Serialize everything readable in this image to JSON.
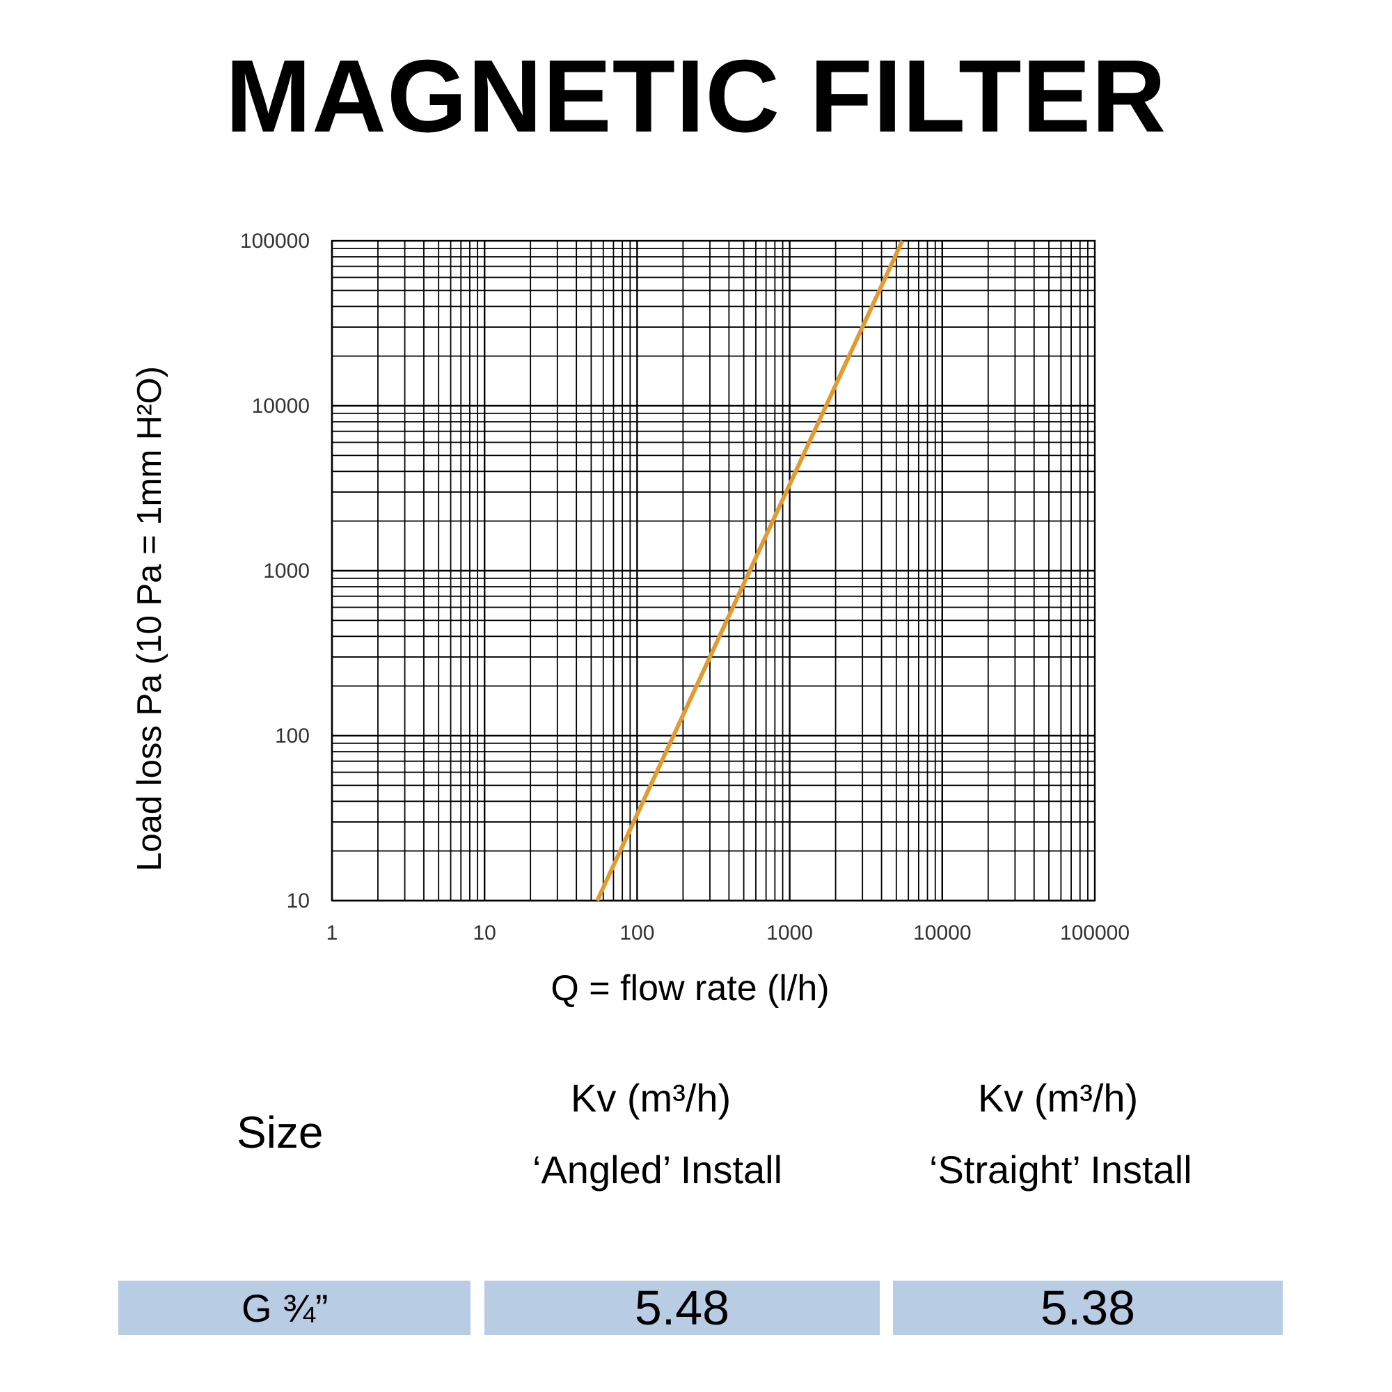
{
  "title": "MAGNETIC FILTER",
  "chart_data": {
    "type": "line",
    "xlabel": "Q = flow rate (l/h)",
    "ylabel": "Load loss Pa (10 Pa = 1mm H²O)",
    "x_scale": "log",
    "y_scale": "log",
    "xlim": [
      1,
      100000
    ],
    "ylim": [
      10,
      100000
    ],
    "x_ticks": [
      "1",
      "10",
      "100",
      "1000",
      "10000",
      "100000"
    ],
    "y_ticks": [
      "10",
      "100",
      "1000",
      "10000",
      "100000"
    ],
    "grid": true,
    "series": [
      {
        "color": "#e39a2e",
        "x": [
          54.8,
          5480
        ],
        "y": [
          10,
          100000
        ]
      }
    ]
  },
  "table": {
    "size_header": "Size",
    "angled_header_line1": "Kv (m³/h)",
    "angled_header_line2": "‘Angled’ Install",
    "straight_header_line1": "Kv (m³/h)",
    "straight_header_line2": "‘Straight’ Install",
    "row": {
      "size": "G ¾”",
      "angled_kv": "5.48",
      "straight_kv": "5.38"
    },
    "row_color": "#b8cce4"
  }
}
